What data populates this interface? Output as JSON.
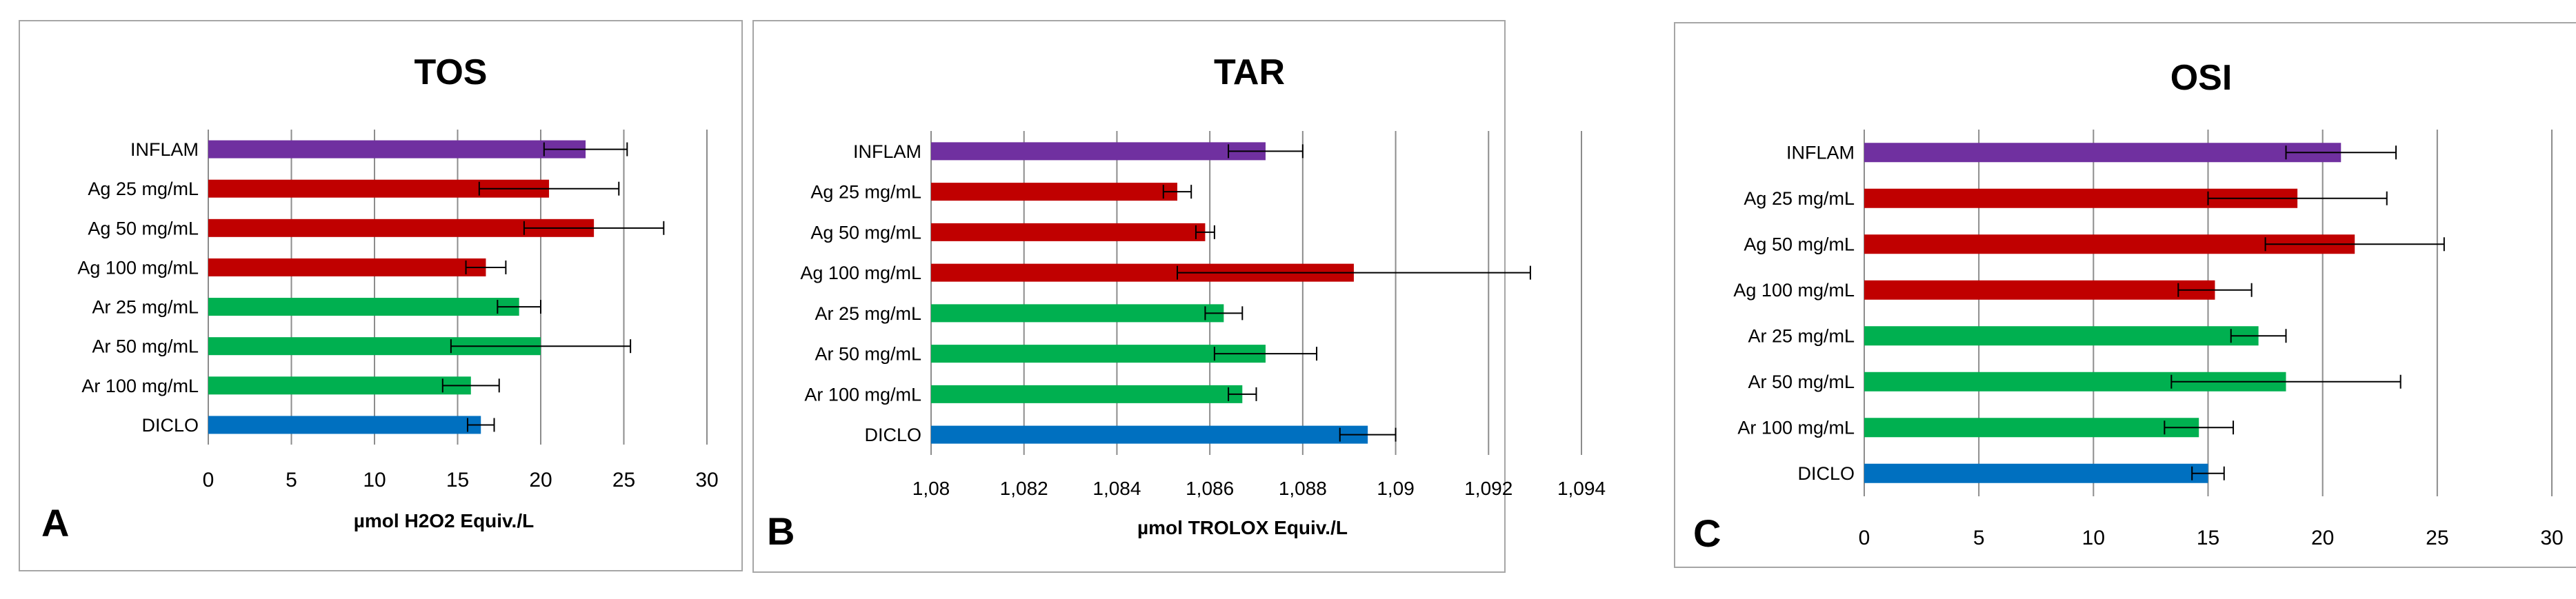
{
  "colors": {
    "purple": "#7030a0",
    "red": "#c00000",
    "green": "#00b050",
    "blue": "#0070c0",
    "grid": "#8c8c8c",
    "frame": "#a6a6a6",
    "text": "#000000"
  },
  "chart_data": [
    {
      "type": "bar",
      "orientation": "horizontal",
      "panel_letter": "A",
      "title": "TOS",
      "xlabel": "µmol H2O2 Equiv./L",
      "ylabel": "",
      "xlim": [
        0,
        30
      ],
      "ticks": [
        0,
        5,
        10,
        15,
        20,
        25,
        30
      ],
      "tick_labels": [
        "0",
        "5",
        "10",
        "15",
        "20",
        "25",
        "30"
      ],
      "categories": [
        "INFLAM",
        "Ag 25 mg/mL",
        "Ag 50 mg/mL",
        "Ag 100 mg/mL",
        "Ar 25 mg/mL",
        "Ar 50 mg/mL",
        "Ar 100 mg/mL",
        "DICLO"
      ],
      "values": [
        22.7,
        20.5,
        23.2,
        16.7,
        18.7,
        20.0,
        15.8,
        16.4
      ],
      "errors": [
        2.5,
        4.2,
        4.2,
        1.2,
        1.3,
        5.4,
        1.7,
        0.8
      ],
      "bar_colors": [
        "purple",
        "red",
        "red",
        "red",
        "green",
        "green",
        "green",
        "blue"
      ],
      "grid": true,
      "legend": "none"
    },
    {
      "type": "bar",
      "orientation": "horizontal",
      "panel_letter": "B",
      "title": "TAR",
      "xlabel": "µmol TROLOX Equiv./L",
      "ylabel": "",
      "xlim": [
        1.08,
        1.094
      ],
      "ticks": [
        1.08,
        1.082,
        1.084,
        1.086,
        1.088,
        1.09,
        1.092,
        1.094
      ],
      "tick_labels": [
        "1,08",
        "1,082",
        "1,084",
        "1,086",
        "1,088",
        "1,09",
        "1,092",
        "1,094"
      ],
      "categories": [
        "INFLAM",
        "Ag 25 mg/mL",
        "Ag 50 mg/mL",
        "Ag 100 mg/mL",
        "Ar 25 mg/mL",
        "Ar 50 mg/mL",
        "Ar 100 mg/mL",
        "DICLO"
      ],
      "values": [
        1.0872,
        1.0853,
        1.0859,
        1.0891,
        1.0863,
        1.0872,
        1.0867,
        1.0894
      ],
      "errors": [
        0.0008,
        0.0003,
        0.0002,
        0.0038,
        0.0004,
        0.0011,
        0.0003,
        0.0006
      ],
      "bar_colors": [
        "purple",
        "red",
        "red",
        "red",
        "green",
        "green",
        "green",
        "blue"
      ],
      "grid": true,
      "legend": "none"
    },
    {
      "type": "bar",
      "orientation": "horizontal",
      "panel_letter": "C",
      "title": "OSI",
      "xlabel": "",
      "ylabel": "",
      "xlim": [
        0,
        30
      ],
      "ticks": [
        0,
        5,
        10,
        15,
        20,
        25,
        30
      ],
      "tick_labels": [
        "0",
        "5",
        "10",
        "15",
        "20",
        "25",
        "30"
      ],
      "categories": [
        "INFLAM",
        "Ag 25 mg/mL",
        "Ag 50 mg/mL",
        "Ag 100 mg/mL",
        "Ar 25 mg/mL",
        "Ar 50 mg/mL",
        "Ar 100 mg/mL",
        "DICLO"
      ],
      "values": [
        20.8,
        18.9,
        21.4,
        15.3,
        17.2,
        18.4,
        14.6,
        15.0
      ],
      "errors": [
        2.4,
        3.9,
        3.9,
        1.6,
        1.2,
        5.0,
        1.5,
        0.7
      ],
      "bar_colors": [
        "purple",
        "red",
        "red",
        "red",
        "green",
        "green",
        "green",
        "blue"
      ],
      "grid": true,
      "legend": "none"
    }
  ]
}
